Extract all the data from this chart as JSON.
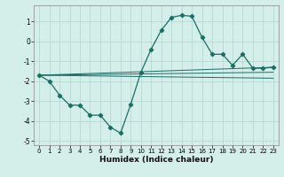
{
  "xlabel": "Humidex (Indice chaleur)",
  "bg_color": "#d4eeea",
  "grid_color": "#b8d8d4",
  "line_color": "#1a6e64",
  "xlim": [
    -0.5,
    23.5
  ],
  "ylim": [
    -5.2,
    1.8
  ],
  "yticks": [
    -5,
    -4,
    -3,
    -2,
    -1,
    0,
    1
  ],
  "xticks": [
    0,
    1,
    2,
    3,
    4,
    5,
    6,
    7,
    8,
    9,
    10,
    11,
    12,
    13,
    14,
    15,
    16,
    17,
    18,
    19,
    20,
    21,
    22,
    23
  ],
  "main_series": {
    "x": [
      0,
      1,
      2,
      3,
      4,
      5,
      6,
      7,
      8,
      9,
      10,
      11,
      12,
      13,
      14,
      15,
      16,
      17,
      18,
      19,
      20,
      21,
      22,
      23
    ],
    "y": [
      -1.7,
      -2.0,
      -2.7,
      -3.2,
      -3.2,
      -3.7,
      -3.7,
      -4.3,
      -4.6,
      -3.15,
      -1.55,
      -0.4,
      0.55,
      1.2,
      1.3,
      1.25,
      0.2,
      -0.65,
      -0.65,
      -1.2,
      -0.65,
      -1.35,
      -1.35,
      -1.3
    ]
  },
  "straight_lines": [
    {
      "x0": 0,
      "y0": -1.7,
      "x1": 23,
      "y1": -1.3
    },
    {
      "x0": 0,
      "y0": -1.7,
      "x1": 23,
      "y1": -1.55
    },
    {
      "x0": 0,
      "y0": -1.7,
      "x1": 23,
      "y1": -1.85
    }
  ]
}
